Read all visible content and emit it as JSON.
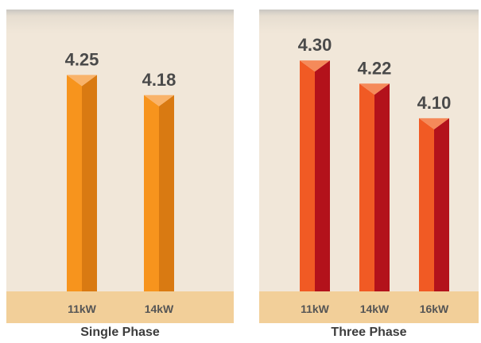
{
  "chart_data": [
    {
      "type": "bar",
      "title": "Single Phase",
      "categories": [
        "11kW",
        "14kW"
      ],
      "values": [
        4.25,
        4.18
      ],
      "ylim": [
        3.5,
        4.35
      ],
      "grid": false,
      "colors": {
        "front": "#f7941d",
        "side": "#d97a12",
        "top": "#f9b36a",
        "floor": "#f2cf99"
      }
    },
    {
      "type": "bar",
      "title": "Three Phase",
      "categories": [
        "11kW",
        "14kW",
        "16kW"
      ],
      "values": [
        4.3,
        4.22,
        4.1
      ],
      "ylim": [
        3.5,
        4.35
      ],
      "grid": false,
      "colors": {
        "front": "#f15a24",
        "side": "#b3121b",
        "top": "#f58a5a",
        "floor": "#f2cf99"
      }
    }
  ]
}
